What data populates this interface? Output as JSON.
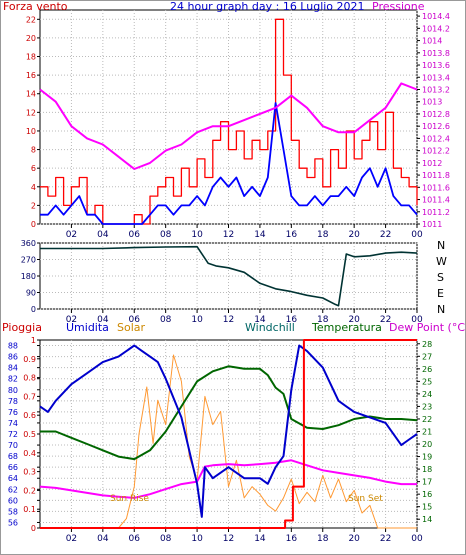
{
  "top": {
    "title": "24 hour graph day : 16 Luglio 2021",
    "left_label": "Forza vento",
    "right_label": "Pressione"
  },
  "middle": {
    "direction_labels": [
      "N",
      "W",
      "S",
      "E",
      "N"
    ]
  },
  "bottom": {
    "labels": {
      "pioggia": "Pioggia",
      "umidita": "Umidita",
      "solar": "Solar",
      "windchill": "Windchill",
      "temperatura": "Temperatura",
      "dewpoint": "Dew Point (°C)",
      "sunrise": "Sun Rise",
      "sunset": "Sun Set"
    }
  },
  "colors": {
    "wind_gust": "#ff0000",
    "wind_avg": "#0000ff",
    "pressure": "#ff00ff",
    "direction": "#003333",
    "humidity": "#0000cc",
    "solar": "#ff9933",
    "temperature": "#006600",
    "dewpoint": "#ff00ff",
    "rain": "#ff0000",
    "left_axis_red": "#cc0000",
    "left_axis_blue": "#0000cc",
    "right_axis_magenta": "#cc00cc",
    "right_axis_green": "#006600"
  },
  "chart_data": [
    {
      "type": "line",
      "x_ticks": [
        "02",
        "04",
        "06",
        "08",
        "10",
        "12",
        "14",
        "16",
        "18",
        "20",
        "22",
        "00"
      ],
      "y_ticks_left": [
        "0",
        "2",
        "4",
        "6",
        "8",
        "10",
        "12",
        "14",
        "16",
        "18",
        "20",
        "22"
      ],
      "y_ticks_right": [
        "1011",
        "1011.2",
        "1011.4",
        "1011.6",
        "1011.8",
        "1012",
        "1012.2",
        "1012.4",
        "1012.6",
        "1012.8",
        "1013",
        "1013.2",
        "1013.4",
        "1013.6",
        "1013.8",
        "1014",
        "1014.2",
        "1014.4"
      ],
      "ylim_left": [
        0,
        23
      ],
      "ylim_right": [
        1011,
        1014.5
      ],
      "xlim": [
        0,
        24
      ],
      "grid": true,
      "series": [
        {
          "name": "Forza vento",
          "key": "gust",
          "axis": "left",
          "x": [
            0,
            0.5,
            1,
            1.5,
            2,
            2.5,
            3,
            3.5,
            4,
            4.5,
            5,
            5.5,
            6,
            6.5,
            7,
            7.5,
            8,
            8.5,
            9,
            9.5,
            10,
            10.5,
            11,
            11.5,
            12,
            12.5,
            13,
            13.5,
            14,
            14.5,
            15,
            15.5,
            16,
            16.5,
            17,
            17.5,
            18,
            18.5,
            19,
            19.5,
            20,
            20.5,
            21,
            21.5,
            22,
            22.5,
            23,
            23.5,
            24
          ],
          "y": [
            4,
            3,
            5,
            2,
            4,
            5,
            1,
            2,
            0,
            0,
            0,
            0,
            1,
            0,
            3,
            4,
            5,
            3,
            6,
            4,
            7,
            5,
            9,
            11,
            8,
            10,
            7,
            9,
            8,
            10,
            22,
            16,
            9,
            6,
            5,
            7,
            4,
            8,
            6,
            10,
            7,
            9,
            11,
            8,
            12,
            6,
            5,
            4,
            2
          ]
        },
        {
          "name": "",
          "key": "avg",
          "axis": "left",
          "x": [
            0,
            0.5,
            1,
            1.5,
            2,
            2.5,
            3,
            3.5,
            4,
            4.5,
            5,
            5.5,
            6,
            6.5,
            7,
            7.5,
            8,
            8.5,
            9,
            9.5,
            10,
            10.5,
            11,
            11.5,
            12,
            12.5,
            13,
            13.5,
            14,
            14.5,
            15,
            15.5,
            16,
            16.5,
            17,
            17.5,
            18,
            18.5,
            19,
            19.5,
            20,
            20.5,
            21,
            21.5,
            22,
            22.5,
            23,
            23.5,
            24
          ],
          "y": [
            1,
            1,
            2,
            1,
            2,
            3,
            1,
            1,
            0,
            0,
            0,
            0,
            0,
            0,
            1,
            2,
            2,
            1,
            2,
            2,
            3,
            2,
            4,
            5,
            4,
            5,
            3,
            4,
            3,
            5,
            13,
            8,
            3,
            2,
            2,
            3,
            2,
            3,
            3,
            4,
            3,
            5,
            6,
            4,
            6,
            3,
            2,
            2,
            1
          ]
        },
        {
          "name": "Pressione",
          "key": "pressure",
          "axis": "right",
          "x": [
            0,
            1,
            2,
            3,
            4,
            5,
            6,
            7,
            8,
            9,
            10,
            11,
            12,
            13,
            14,
            15,
            16,
            17,
            18,
            19,
            20,
            21,
            22,
            23,
            24
          ],
          "y": [
            1013.2,
            1013.0,
            1012.6,
            1012.4,
            1012.3,
            1012.1,
            1011.9,
            1012.0,
            1012.2,
            1012.3,
            1012.5,
            1012.6,
            1012.6,
            1012.7,
            1012.8,
            1012.9,
            1013.1,
            1012.9,
            1012.6,
            1012.5,
            1012.5,
            1012.7,
            1012.9,
            1013.3,
            1013.2
          ]
        }
      ]
    },
    {
      "type": "line",
      "x_ticks": [
        "02",
        "04",
        "06",
        "08",
        "10",
        "12",
        "14",
        "16",
        "18",
        "20",
        "22",
        "00"
      ],
      "y_ticks": [
        "0",
        "90",
        "180",
        "270",
        "360"
      ],
      "ylim": [
        0,
        360
      ],
      "xlim": [
        0,
        24
      ],
      "grid": true,
      "series": [
        {
          "name": "",
          "key": "direction",
          "x": [
            0,
            2,
            4,
            6,
            8,
            10,
            10.7,
            11.2,
            12,
            13,
            14,
            15,
            16,
            17,
            18,
            18.8,
            19,
            19.5,
            20,
            21,
            22,
            23,
            24
          ],
          "y": [
            330,
            330,
            330,
            335,
            338,
            340,
            250,
            235,
            225,
            200,
            140,
            110,
            95,
            75,
            60,
            25,
            18,
            300,
            285,
            290,
            305,
            310,
            305
          ]
        }
      ]
    },
    {
      "type": "line",
      "x_ticks": [
        "02",
        "04",
        "06",
        "08",
        "10",
        "12",
        "14",
        "16",
        "18",
        "20",
        "22",
        "00"
      ],
      "y_ticks_left": [
        "56",
        "58",
        "60",
        "62",
        "64",
        "66",
        "68",
        "70",
        "72",
        "74",
        "76",
        "78",
        "80",
        "82",
        "84",
        "86",
        "88"
      ],
      "y_ticks_left2": [
        "0",
        "0.1",
        "0.2",
        "0.3",
        "0.4",
        "0.5",
        "0.6",
        "0.7",
        "0.8",
        "0.9",
        "1"
      ],
      "y_ticks_right": [
        "14",
        "15",
        "16",
        "17",
        "18",
        "19",
        "20",
        "21",
        "22",
        "23",
        "24",
        "25",
        "26",
        "27",
        "28"
      ],
      "ylim_humidity": [
        55,
        89
      ],
      "ylim_rain": [
        0,
        1
      ],
      "ylim_temp": [
        13.3,
        28.3
      ],
      "xlim": [
        0,
        24
      ],
      "grid": true,
      "series": [
        {
          "name": "Umidita",
          "key": "humidity",
          "axis": "humidity",
          "x": [
            0,
            0.5,
            1,
            2,
            3,
            4,
            5,
            6,
            6.5,
            7,
            7.5,
            8,
            9,
            10,
            10.3,
            10.5,
            11,
            12,
            13,
            14,
            14.5,
            15,
            15.5,
            16,
            16.5,
            17,
            18,
            19,
            19.5,
            20,
            21,
            22,
            23,
            23.5,
            24
          ],
          "y": [
            77,
            76,
            78,
            81,
            83,
            85,
            86,
            88,
            87,
            86,
            85,
            82,
            75,
            63,
            57,
            66,
            64,
            66,
            64,
            64,
            63,
            66,
            68,
            80,
            88,
            87,
            84,
            78,
            77,
            76,
            75,
            74,
            70,
            71,
            72
          ]
        },
        {
          "name": "Solar",
          "key": "solar",
          "axis": "rain",
          "x": [
            0,
            5,
            5.5,
            6,
            6.3,
            6.8,
            7.2,
            7.5,
            8,
            8.5,
            9,
            9.5,
            10,
            10.5,
            11,
            11.5,
            12,
            12.5,
            13,
            13.5,
            14,
            14.5,
            15,
            15.5,
            16,
            16.5,
            17,
            17.5,
            18,
            18.5,
            19,
            19.5,
            20,
            20.5,
            21,
            21.5,
            24
          ],
          "y": [
            0,
            0,
            0.05,
            0.22,
            0.5,
            0.75,
            0.45,
            0.68,
            0.55,
            0.92,
            0.78,
            0.38,
            0.25,
            0.7,
            0.55,
            0.62,
            0.22,
            0.36,
            0.16,
            0.22,
            0.18,
            0.12,
            0.09,
            0.16,
            0.26,
            0.13,
            0.19,
            0.14,
            0.28,
            0.16,
            0.26,
            0.14,
            0.2,
            0.08,
            0.12,
            0,
            0
          ]
        },
        {
          "name": "Temperatura",
          "key": "temperature",
          "axis": "temp",
          "x": [
            0,
            1,
            2,
            3,
            4,
            5,
            6,
            7,
            8,
            9,
            10,
            11,
            12,
            13,
            14,
            14.5,
            15,
            15.5,
            16,
            17,
            18,
            19,
            20,
            21,
            22,
            23,
            24
          ],
          "y": [
            21.0,
            21.0,
            20.5,
            20.0,
            19.5,
            19.0,
            18.8,
            19.5,
            21.0,
            23.0,
            25.0,
            25.8,
            26.2,
            26.0,
            26.0,
            25.5,
            24.5,
            24.0,
            22.0,
            21.3,
            21.2,
            21.5,
            22.0,
            22.2,
            22.0,
            22.0,
            21.9
          ]
        },
        {
          "name": "Dew Point (°C)",
          "key": "dewpoint",
          "axis": "temp",
          "x": [
            0,
            1,
            2,
            3,
            4,
            5,
            6,
            7,
            8,
            9,
            10,
            10.5,
            11,
            12,
            13,
            14,
            15,
            16,
            17,
            18,
            19,
            20,
            21,
            22,
            23,
            24
          ],
          "y": [
            16.6,
            16.5,
            16.3,
            16.1,
            15.9,
            15.8,
            15.7,
            16.0,
            16.4,
            16.8,
            17.0,
            18.2,
            18.3,
            18.4,
            18.3,
            18.4,
            18.5,
            18.7,
            18.3,
            17.9,
            17.7,
            17.5,
            17.3,
            17.0,
            16.8,
            16.8
          ]
        },
        {
          "name": "Pioggia",
          "key": "rain",
          "axis": "rain",
          "x": [
            0,
            15.6,
            15.6,
            16.1,
            16.1,
            16.8,
            16.8,
            24
          ],
          "y": [
            0,
            0,
            0.04,
            0.04,
            0.22,
            0.22,
            1,
            1
          ]
        }
      ]
    }
  ]
}
